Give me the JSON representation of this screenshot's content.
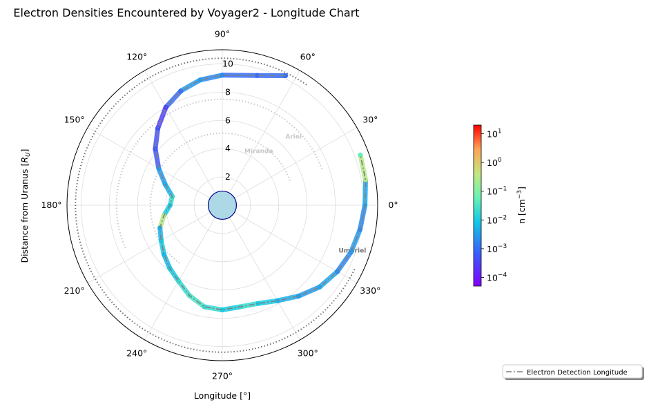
{
  "chart_data": {
    "type": "scatter",
    "projection": "polar",
    "title": "Electron Densities Encountered by Voyager2 - Longitude Chart",
    "xlabel": "Longitude [°]",
    "ylabel": "Distance from Uranus [R_U]",
    "ylabel_main": "Distance from Uranus [",
    "ylabel_symbol": "R",
    "ylabel_sub": "U",
    "ylabel_close": "]",
    "rlim": [
      0,
      11
    ],
    "angle_ticks_deg": [
      0,
      30,
      60,
      90,
      120,
      150,
      180,
      210,
      240,
      270,
      300,
      330
    ],
    "angle_tick_labels": [
      "0°",
      "30°",
      "60°",
      "90°",
      "120°",
      "150°",
      "180°",
      "210°",
      "240°",
      "270°",
      "300°",
      "330°"
    ],
    "radial_ticks": [
      2,
      4,
      6,
      8,
      10
    ],
    "radial_tick_labels": [
      "2",
      "4",
      "6",
      "8",
      "10"
    ],
    "grid": true,
    "planet": {
      "radius": 1,
      "color": "#add8e6",
      "edge_color": "#00008b"
    },
    "moons": [
      {
        "name": "Miranda",
        "radius": 5.1,
        "color": "#c8c8c8",
        "theta_start_deg": 20,
        "theta_end_deg": 235
      },
      {
        "name": "Ariel",
        "radius": 7.5,
        "color": "#c8c8c8",
        "theta_start_deg": 20,
        "theta_end_deg": 205
      },
      {
        "name": "Umbriel",
        "radius": 10.4,
        "color": "#6e6e6e",
        "theta_start_deg": 55,
        "theta_end_deg": 335
      }
    ],
    "series": [
      {
        "name": "Electron Detection Longitude",
        "line_style": "dashdot",
        "theta_deg": [
          64,
          75,
          90,
          100,
          110,
          120,
          130,
          140,
          150,
          160,
          170,
          180,
          190,
          200,
          210,
          220,
          230,
          240,
          250,
          260,
          270,
          280,
          290,
          300,
          310,
          320,
          330,
          340,
          350,
          0,
          10,
          20
        ],
        "r": [
          10.2,
          9.5,
          9.2,
          9.0,
          8.6,
          8.0,
          7.1,
          6.2,
          5.2,
          4.3,
          3.6,
          3.7,
          4.2,
          4.7,
          5.0,
          5.4,
          5.8,
          6.2,
          6.8,
          7.3,
          7.4,
          7.3,
          7.4,
          7.8,
          8.4,
          9.0,
          9.4,
          9.7,
          9.9,
          10.1,
          10.3,
          10.4
        ],
        "density_cm3": [
          0.001,
          0.001,
          0.002,
          0.003,
          0.001,
          0.0003,
          0.0005,
          0.0006,
          0.003,
          0.005,
          0.02,
          0.01,
          0.3,
          0.005,
          0.01,
          0.006,
          0.01,
          0.02,
          0.03,
          0.02,
          0.01,
          0.02,
          0.01,
          0.005,
          0.003,
          0.004,
          0.002,
          0.003,
          0.002,
          0.004,
          0.3,
          0.05
        ]
      }
    ],
    "colorbar": {
      "label_main": "n [cm",
      "label_sup": "−3",
      "label_close": "]",
      "scale": "log",
      "range": [
        5e-05,
        20
      ],
      "colormap": "rainbow",
      "ticks": [
        {
          "value": 0.0001,
          "base": "10",
          "exp": "−4"
        },
        {
          "value": 0.001,
          "base": "10",
          "exp": "−3"
        },
        {
          "value": 0.01,
          "base": "10",
          "exp": "−2"
        },
        {
          "value": 0.1,
          "base": "10",
          "exp": "−1"
        },
        {
          "value": 1,
          "base": "10",
          "exp": "0"
        },
        {
          "value": 10,
          "base": "10",
          "exp": "1"
        }
      ]
    },
    "legend": {
      "placement": "lower-right",
      "label": "Electron Detection Longitude"
    }
  }
}
